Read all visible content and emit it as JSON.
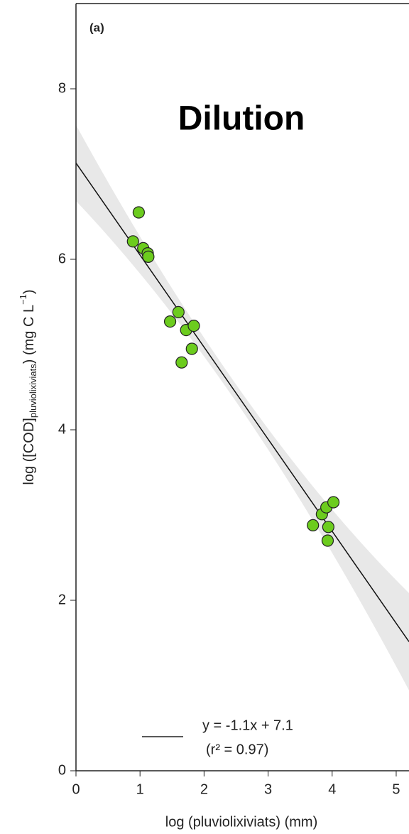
{
  "chart_data": {
    "type": "scatter",
    "annotations": {
      "panel": "(a)",
      "label": "Dilution"
    },
    "xlabel": "log (pluviolixiviats) (mm)",
    "ylabel": {
      "main": "log ([COD]",
      "sub": "pluviolixiviats",
      "unit": ") (mg C L",
      "sup": "−1",
      "end": ")"
    },
    "series": [
      {
        "color": "#6ccc1e",
        "x": [
          0.89,
          0.98,
          1.05,
          1.12,
          1.13,
          1.47,
          1.6,
          1.72,
          1.84,
          1.81,
          1.65,
          3.7,
          3.84,
          3.91,
          4.02,
          3.94,
          3.93
        ],
        "values": [
          6.21,
          6.55,
          6.13,
          6.07,
          6.03,
          5.27,
          5.38,
          5.17,
          5.22,
          4.95,
          4.79,
          2.88,
          3.01,
          3.09,
          3.15,
          2.86,
          2.7
        ]
      }
    ],
    "fit": {
      "intercept": 7.13,
      "slope": -1.08,
      "equation": "y = -1.1x + 7.1",
      "r2": "(r² = 0.97)"
    },
    "xlim": [
      0,
      5.2
    ],
    "xticks": [
      0,
      1,
      2,
      3,
      4,
      5
    ],
    "ylim": [
      0,
      9
    ],
    "yticks": [
      0,
      2,
      4,
      6,
      8
    ]
  }
}
